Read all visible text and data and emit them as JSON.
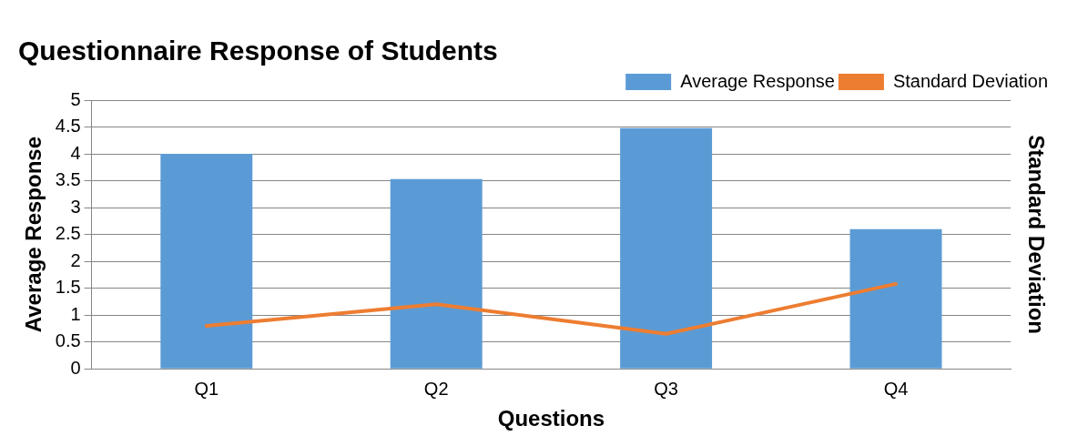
{
  "chart_data": {
    "type": "bar",
    "title": "Questionnaire Response of Students",
    "xlabel": "Questions",
    "ylabel": "Average Response",
    "y2label": "Standard Deviation",
    "categories": [
      "Q1",
      "Q2",
      "Q3",
      "Q4"
    ],
    "series": [
      {
        "name": "Average Response",
        "color": "#5b9bd5",
        "values": [
          4.0,
          3.53,
          4.48,
          2.6
        ]
      },
      {
        "name": "Standard Deviation",
        "type": "line",
        "color": "#ed7d31",
        "values": [
          0.8,
          1.2,
          0.65,
          1.58
        ]
      }
    ],
    "ylim": [
      0,
      5
    ],
    "yticks": [
      0,
      0.5,
      1,
      1.5,
      2,
      2.5,
      3,
      3.5,
      4,
      4.5,
      5
    ],
    "grid": "y",
    "legend": "top right",
    "marker": "none"
  }
}
